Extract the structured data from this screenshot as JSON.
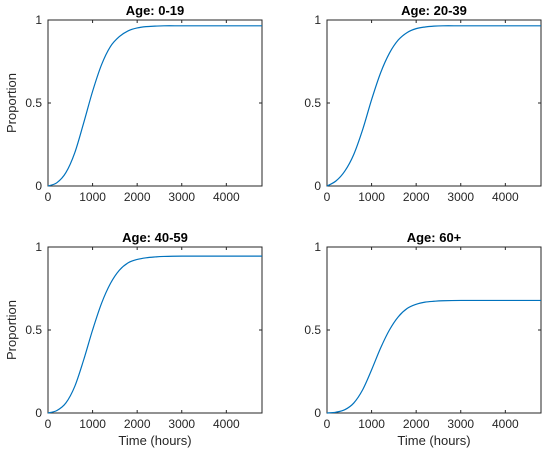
{
  "chart_data": [
    {
      "type": "line",
      "title": "Age: 0-19",
      "xlabel": "",
      "ylabel": "Proportion",
      "xlim": [
        0,
        4800
      ],
      "ylim": [
        0,
        1
      ],
      "xticks": [
        0,
        1000,
        2000,
        3000,
        4000
      ],
      "yticks": [
        0,
        0.5,
        1
      ],
      "xtick_labels": [
        "0",
        "1000",
        "2000",
        "3000",
        "4000"
      ],
      "ytick_labels": [
        "0",
        "0.5",
        "1"
      ],
      "grid": false,
      "line_color": "#0072BD",
      "x": [
        0,
        200,
        400,
        600,
        800,
        1000,
        1200,
        1400,
        1600,
        1800,
        2000,
        2200,
        2400,
        2600,
        3000,
        3500,
        4000,
        4500,
        4800
      ],
      "y": [
        0.0,
        0.02,
        0.08,
        0.2,
        0.38,
        0.57,
        0.73,
        0.84,
        0.9,
        0.935,
        0.952,
        0.96,
        0.963,
        0.965,
        0.965,
        0.965,
        0.965,
        0.965,
        0.965
      ]
    },
    {
      "type": "line",
      "title": "Age: 20-39",
      "xlabel": "",
      "ylabel": "",
      "xlim": [
        0,
        4800
      ],
      "ylim": [
        0,
        1
      ],
      "xticks": [
        0,
        1000,
        2000,
        3000,
        4000
      ],
      "yticks": [
        0,
        0.5,
        1
      ],
      "xtick_labels": [
        "0",
        "1000",
        "2000",
        "3000",
        "4000"
      ],
      "ytick_labels": [
        "0",
        "0.5",
        "1"
      ],
      "grid": false,
      "line_color": "#0072BD",
      "x": [
        0,
        200,
        400,
        600,
        800,
        1000,
        1200,
        1400,
        1600,
        1800,
        2000,
        2200,
        2400,
        2600,
        3000,
        3500,
        4000,
        4500,
        4800
      ],
      "y": [
        0.0,
        0.03,
        0.09,
        0.19,
        0.34,
        0.52,
        0.68,
        0.8,
        0.88,
        0.925,
        0.948,
        0.958,
        0.963,
        0.965,
        0.965,
        0.965,
        0.965,
        0.965,
        0.965
      ]
    },
    {
      "type": "line",
      "title": "Age: 40-59",
      "xlabel": "Time (hours)",
      "ylabel": "Proportion",
      "xlim": [
        0,
        4800
      ],
      "ylim": [
        0,
        1
      ],
      "xticks": [
        0,
        1000,
        2000,
        3000,
        4000
      ],
      "yticks": [
        0,
        0.5,
        1
      ],
      "xtick_labels": [
        "0",
        "1000",
        "2000",
        "3000",
        "4000"
      ],
      "ytick_labels": [
        "0",
        "0.5",
        "1"
      ],
      "grid": false,
      "line_color": "#0072BD",
      "x": [
        0,
        200,
        400,
        600,
        800,
        1000,
        1200,
        1400,
        1600,
        1800,
        2000,
        2200,
        2400,
        2600,
        3000,
        3500,
        4000,
        4500,
        4800
      ],
      "y": [
        0.0,
        0.015,
        0.06,
        0.16,
        0.32,
        0.5,
        0.66,
        0.78,
        0.86,
        0.905,
        0.925,
        0.935,
        0.94,
        0.943,
        0.945,
        0.945,
        0.945,
        0.945,
        0.945
      ]
    },
    {
      "type": "line",
      "title": "Age: 60+",
      "xlabel": "Time (hours)",
      "ylabel": "",
      "xlim": [
        0,
        4800
      ],
      "ylim": [
        0,
        1
      ],
      "xticks": [
        0,
        1000,
        2000,
        3000,
        4000
      ],
      "yticks": [
        0,
        0.5,
        1
      ],
      "xtick_labels": [
        "0",
        "1000",
        "2000",
        "3000",
        "4000"
      ],
      "ytick_labels": [
        "0",
        "0.5",
        "1"
      ],
      "grid": false,
      "line_color": "#0072BD",
      "x": [
        0,
        200,
        400,
        600,
        800,
        1000,
        1200,
        1400,
        1600,
        1800,
        2000,
        2200,
        2400,
        2600,
        3000,
        3500,
        4000,
        4500,
        4800
      ],
      "y": [
        0.0,
        0.005,
        0.02,
        0.06,
        0.14,
        0.26,
        0.39,
        0.5,
        0.58,
        0.63,
        0.655,
        0.668,
        0.673,
        0.676,
        0.678,
        0.678,
        0.678,
        0.678,
        0.678
      ]
    }
  ]
}
